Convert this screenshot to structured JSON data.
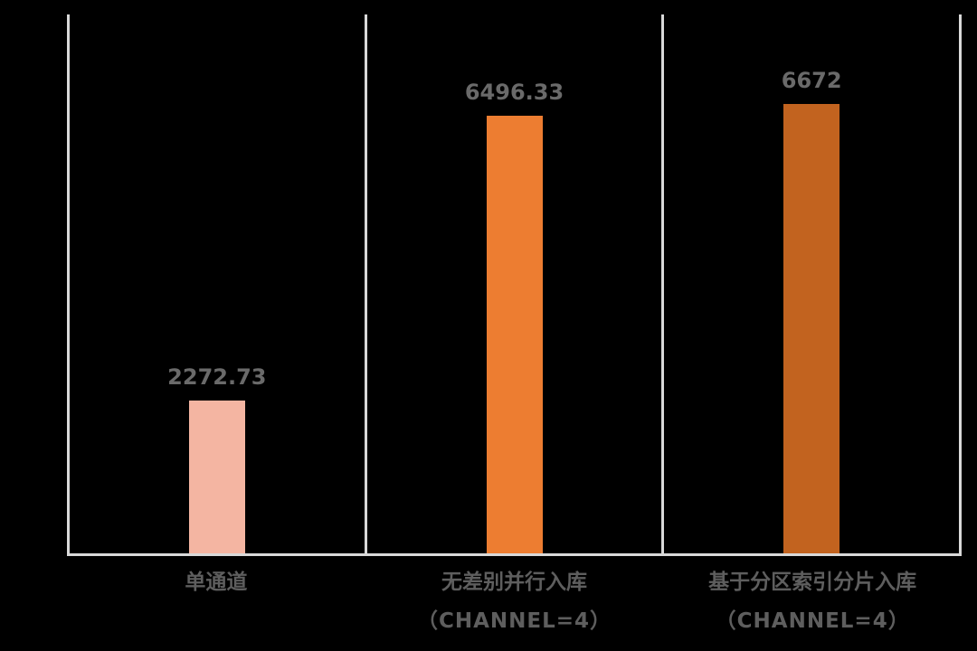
{
  "chart_data": {
    "type": "bar",
    "title": "",
    "xlabel": "",
    "ylabel": "",
    "legend": "none",
    "grid": "vertical-category-separators",
    "categories": [
      "单通道",
      "无差别并行入库",
      "基于分区索引分片入库"
    ],
    "category_sublabels": [
      "",
      "（CHANNEL=4）",
      "（CHANNEL=4）"
    ],
    "values": [
      2272.73,
      6496.33,
      6672
    ],
    "value_labels": [
      "2272.73",
      "6496.33",
      "6672"
    ],
    "bar_colors": [
      "#F4B5A2",
      "#ED7D31",
      "#C2631F"
    ],
    "ylim": [
      0,
      8000
    ],
    "colors": {
      "background": "#000000",
      "axis_line": "#D9D9D9",
      "value_label": "#6A6A6A",
      "category_label": "#5E5E5E"
    }
  }
}
